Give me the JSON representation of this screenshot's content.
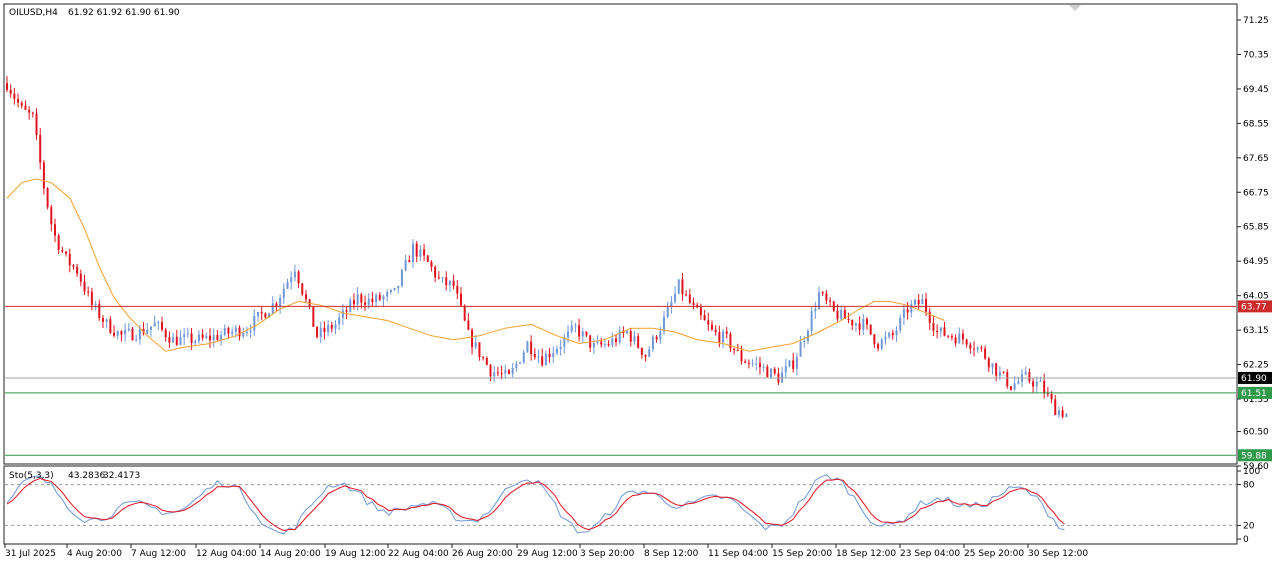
{
  "header": {
    "symbol": "OILUSD,H4",
    "ohlc": "61.92 61.92 61.90 61.90"
  },
  "colors": {
    "bull": "#6f97d6",
    "bear": "#e0121e",
    "ma": "#f0a030",
    "resistance_line": "#cc2b2b",
    "support_line": "#2e9a4a",
    "price_line": "#a0a0a0",
    "stoch_main": "#6f97d6",
    "stoch_signal": "#e0121e",
    "grid": "#c8c8c8"
  },
  "chart_data": [
    {
      "type": "candlestick",
      "symbol": "OILUSD",
      "timeframe": "H4",
      "ylim": [
        59.6,
        71.25
      ],
      "yticks": [
        "71.25",
        "70.35",
        "69.45",
        "68.55",
        "67.65",
        "66.75",
        "65.85",
        "64.95",
        "64.05",
        "63.15",
        "62.25",
        "61.35",
        "60.50",
        "59.60"
      ],
      "xticks": [
        "31 Jul 2025",
        "4 Aug 20:00",
        "7 Aug 12:00",
        "12 Aug 04:00",
        "14 Aug 20:00",
        "19 Aug 12:00",
        "22 Aug 04:00",
        "26 Aug 20:00",
        "29 Aug 12:00",
        "3 Sep 20:00",
        "8 Sep 12:00",
        "11 Sep 04:00",
        "15 Sep 20:00",
        "18 Sep 12:00",
        "23 Sep 04:00",
        "25 Sep 20:00",
        "30 Sep 12:00"
      ],
      "close_path": [
        [
          0,
          69.6
        ],
        [
          8,
          68.9
        ],
        [
          14,
          68.7
        ],
        [
          20,
          66.9
        ],
        [
          25,
          65.7
        ],
        [
          32,
          65.0
        ],
        [
          38,
          64.7
        ],
        [
          46,
          63.8
        ],
        [
          54,
          63.3
        ],
        [
          62,
          63.0
        ],
        [
          72,
          63.1
        ],
        [
          80,
          63.3
        ],
        [
          90,
          62.9
        ],
        [
          106,
          62.9
        ],
        [
          130,
          63.2
        ],
        [
          146,
          63.9
        ],
        [
          156,
          64.8
        ],
        [
          168,
          63.0
        ],
        [
          178,
          63.3
        ],
        [
          190,
          64.0
        ],
        [
          198,
          63.9
        ],
        [
          210,
          64.1
        ],
        [
          220,
          65.3
        ],
        [
          228,
          64.9
        ],
        [
          235,
          64.4
        ],
        [
          242,
          64.3
        ],
        [
          250,
          63.0
        ],
        [
          262,
          62.1
        ],
        [
          272,
          61.9
        ],
        [
          282,
          62.8
        ],
        [
          290,
          62.4
        ],
        [
          300,
          62.8
        ],
        [
          308,
          63.2
        ],
        [
          318,
          62.7
        ],
        [
          326,
          62.8
        ],
        [
          336,
          63.1
        ],
        [
          346,
          62.5
        ],
        [
          356,
          63.4
        ],
        [
          364,
          64.3
        ],
        [
          372,
          63.7
        ],
        [
          382,
          63.1
        ],
        [
          390,
          62.9
        ],
        [
          398,
          62.4
        ],
        [
          408,
          62.2
        ],
        [
          418,
          61.9
        ],
        [
          426,
          62.3
        ],
        [
          432,
          63.0
        ],
        [
          440,
          64.1
        ],
        [
          448,
          63.6
        ],
        [
          456,
          63.4
        ],
        [
          464,
          63.3
        ],
        [
          472,
          62.8
        ],
        [
          480,
          63.0
        ],
        [
          488,
          63.7
        ],
        [
          496,
          63.9
        ],
        [
          504,
          63.1
        ],
        [
          512,
          63.0
        ],
        [
          520,
          62.9
        ],
        [
          528,
          62.6
        ],
        [
          536,
          62.1
        ],
        [
          544,
          61.7
        ],
        [
          552,
          61.9
        ],
        [
          560,
          61.7
        ],
        [
          568,
          61.1
        ],
        [
          576,
          60.9
        ]
      ],
      "moving_average_path": [
        [
          0,
          66.6
        ],
        [
          8,
          67.0
        ],
        [
          16,
          67.1
        ],
        [
          24,
          67.0
        ],
        [
          34,
          66.6
        ],
        [
          42,
          65.8
        ],
        [
          50,
          64.8
        ],
        [
          58,
          64.0
        ],
        [
          66,
          63.5
        ],
        [
          76,
          63.0
        ],
        [
          86,
          62.6
        ],
        [
          96,
          62.7
        ],
        [
          110,
          62.8
        ],
        [
          124,
          63.0
        ],
        [
          136,
          63.3
        ],
        [
          148,
          63.7
        ],
        [
          158,
          63.9
        ],
        [
          170,
          63.8
        ],
        [
          182,
          63.6
        ],
        [
          194,
          63.5
        ],
        [
          206,
          63.4
        ],
        [
          218,
          63.2
        ],
        [
          230,
          63.0
        ],
        [
          242,
          62.9
        ],
        [
          256,
          63.0
        ],
        [
          270,
          63.2
        ],
        [
          284,
          63.3
        ],
        [
          298,
          63.0
        ],
        [
          310,
          62.8
        ],
        [
          324,
          62.9
        ],
        [
          338,
          63.2
        ],
        [
          350,
          63.2
        ],
        [
          362,
          63.1
        ],
        [
          374,
          62.9
        ],
        [
          388,
          62.8
        ],
        [
          402,
          62.6
        ],
        [
          414,
          62.7
        ],
        [
          426,
          62.8
        ],
        [
          440,
          63.1
        ],
        [
          452,
          63.4
        ],
        [
          462,
          63.7
        ],
        [
          470,
          63.9
        ],
        [
          478,
          63.9
        ],
        [
          488,
          63.8
        ],
        [
          498,
          63.6
        ],
        [
          508,
          63.4
        ]
      ],
      "horizontal_levels": [
        {
          "value": 63.77,
          "label": "63.77",
          "role": "resistance"
        },
        {
          "value": 61.51,
          "label": "61.51",
          "role": "support"
        },
        {
          "value": 59.88,
          "label": "59.88",
          "role": "support"
        }
      ],
      "last_price": {
        "value": 61.9,
        "label": "61.90"
      }
    },
    {
      "type": "line",
      "indicator": "Stochastic",
      "label": "Sto(5,3,3)",
      "main_value": "43.2836",
      "signal_value": "32.4173",
      "ylim": [
        0,
        100
      ],
      "yticks": [
        "100",
        "80",
        "20",
        "0"
      ],
      "levels": [
        80,
        20
      ]
    }
  ]
}
